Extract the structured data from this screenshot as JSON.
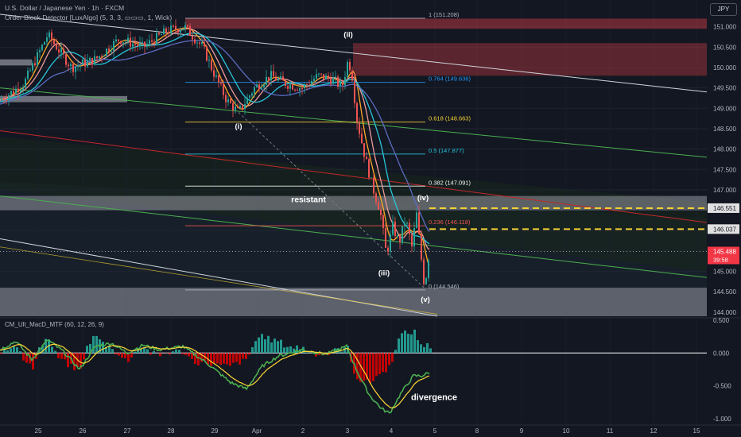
{
  "header": {
    "symbol_line": "U.S. Dollar / Japanese Yen · 1h · FXCM",
    "indicator_line": "Order Block Detector [LuxAlgo] (5, 3, 3, ▭▭▭, 1, Wick)",
    "currency_badge": "JPY"
  },
  "colors": {
    "background": "#131722",
    "bull": "#26a69a",
    "bear": "#ef5350",
    "resistance_level": "#f5d033",
    "last_price": "#f23645",
    "order_block_bear": "#b2373f",
    "macd_up": "#26a69a",
    "macd_down": "#d50000",
    "macd_line": "#4caf50",
    "signal_line": "#fdd835"
  },
  "chart_data": [
    {
      "type": "candlestick",
      "title": "U.S. Dollar / Japanese Yen · 1h · FXCM",
      "ylim": [
        143.9,
        151.5
      ],
      "y_ticks": [
        144.0,
        144.5,
        145.0,
        145.5,
        146.0,
        146.5,
        147.0,
        147.5,
        148.0,
        148.5,
        149.0,
        149.5,
        150.0,
        150.5,
        151.0
      ],
      "y_tick_labels": [
        "144.000",
        "144.500",
        "145.000",
        "145.500",
        "146.000",
        "146.500",
        "147.000",
        "147.500",
        "148.000",
        "148.500",
        "149.000",
        "149.500",
        "150.000",
        "150.500",
        "151.000"
      ],
      "x_tick_labels": [
        "25",
        "26",
        "27",
        "28",
        "29",
        "Apr",
        "2",
        "3",
        "4",
        "5",
        "8",
        "9",
        "10",
        "11",
        "12",
        "15"
      ],
      "price_anchors": [
        {
          "x": 0,
          "y": 149.2
        },
        {
          "x": 30,
          "y": 149.6
        },
        {
          "x": 60,
          "y": 150.8
        },
        {
          "x": 90,
          "y": 150.0
        },
        {
          "x": 120,
          "y": 150.2
        },
        {
          "x": 150,
          "y": 150.7
        },
        {
          "x": 180,
          "y": 150.5
        },
        {
          "x": 210,
          "y": 150.9
        },
        {
          "x": 232,
          "y": 151.0
        },
        {
          "x": 255,
          "y": 150.5
        },
        {
          "x": 268,
          "y": 149.9
        },
        {
          "x": 285,
          "y": 149.2
        },
        {
          "x": 300,
          "y": 148.9
        },
        {
          "x": 320,
          "y": 149.5
        },
        {
          "x": 340,
          "y": 149.8
        },
        {
          "x": 360,
          "y": 149.6
        },
        {
          "x": 380,
          "y": 149.5
        },
        {
          "x": 400,
          "y": 149.8
        },
        {
          "x": 420,
          "y": 149.7
        },
        {
          "x": 430,
          "y": 149.5
        },
        {
          "x": 438,
          "y": 150.2
        },
        {
          "x": 444,
          "y": 149.7
        },
        {
          "x": 448,
          "y": 148.8
        },
        {
          "x": 458,
          "y": 147.9
        },
        {
          "x": 468,
          "y": 147.1
        },
        {
          "x": 478,
          "y": 146.5
        },
        {
          "x": 486,
          "y": 145.4
        },
        {
          "x": 494,
          "y": 146.1
        },
        {
          "x": 502,
          "y": 145.7
        },
        {
          "x": 510,
          "y": 146.3
        },
        {
          "x": 518,
          "y": 145.6
        },
        {
          "x": 524,
          "y": 146.4
        },
        {
          "x": 530,
          "y": 145.3
        },
        {
          "x": 534,
          "y": 144.6
        },
        {
          "x": 540,
          "y": 145.5
        }
      ],
      "fib_levels": [
        {
          "ratio": 1,
          "price": 151.208,
          "label": "1 (151.208)",
          "color": "#b2b5be"
        },
        {
          "ratio": 0.764,
          "price": 149.636,
          "label": "0.764 (149.636)",
          "color": "#2196f3"
        },
        {
          "ratio": 0.618,
          "price": 148.663,
          "label": "0.618 (148.663)",
          "color": "#f5d033"
        },
        {
          "ratio": 0.5,
          "price": 147.877,
          "label": "0.5 (147.877)",
          "color": "#26c6da"
        },
        {
          "ratio": 0.382,
          "price": 147.091,
          "label": "0.382 (147.091)",
          "color": "#f5f5f5"
        },
        {
          "ratio": 0.236,
          "price": 146.118,
          "label": "0.236 (146.118)",
          "color": "#ef5350"
        },
        {
          "ratio": 0,
          "price": 144.546,
          "label": "0 (144.546)",
          "color": "#b2b5be"
        }
      ],
      "dashed_levels": [
        {
          "price": 146.551,
          "label": "146.551"
        },
        {
          "price": 146.037,
          "label": "146.037"
        }
      ],
      "last_price": {
        "price": 145.488,
        "label": "145.488",
        "countdown": "39:58"
      },
      "wave_labels": [
        {
          "label": "(i)",
          "x": 300,
          "y": 148.5
        },
        {
          "label": "(ii)",
          "x": 438,
          "y": 150.75
        },
        {
          "label": "(iii)",
          "x": 483,
          "y": 144.9
        },
        {
          "label": "(iv)",
          "x": 532,
          "y": 146.75
        },
        {
          "label": "(v)",
          "x": 535,
          "y": 144.25
        }
      ],
      "annotations": [
        {
          "label": "resistant",
          "x": 388,
          "y": 146.7
        }
      ]
    },
    {
      "type": "histogram+line",
      "title": "CM_Ult_MacD_MTF (60, 12, 26, 9)",
      "ylim": [
        -1.1,
        0.5
      ],
      "y_ticks": [
        0.5,
        0.0,
        -0.5,
        -1.0
      ],
      "y_tick_labels": [
        "0.500",
        "0.000",
        "-0.500",
        "-1.000"
      ],
      "macd_anchors": [
        {
          "x": 0,
          "y": 0.05
        },
        {
          "x": 20,
          "y": 0.18
        },
        {
          "x": 40,
          "y": -0.1
        },
        {
          "x": 60,
          "y": 0.2
        },
        {
          "x": 80,
          "y": 0.02
        },
        {
          "x": 100,
          "y": -0.25
        },
        {
          "x": 120,
          "y": 0.1
        },
        {
          "x": 140,
          "y": 0.15
        },
        {
          "x": 160,
          "y": 0.0
        },
        {
          "x": 180,
          "y": 0.12
        },
        {
          "x": 200,
          "y": 0.05
        },
        {
          "x": 230,
          "y": 0.1
        },
        {
          "x": 260,
          "y": -0.15
        },
        {
          "x": 290,
          "y": -0.45
        },
        {
          "x": 310,
          "y": -0.55
        },
        {
          "x": 330,
          "y": -0.2
        },
        {
          "x": 350,
          "y": -0.05
        },
        {
          "x": 380,
          "y": 0.05
        },
        {
          "x": 410,
          "y": -0.02
        },
        {
          "x": 436,
          "y": 0.1
        },
        {
          "x": 450,
          "y": -0.3
        },
        {
          "x": 465,
          "y": -0.65
        },
        {
          "x": 480,
          "y": -0.85
        },
        {
          "x": 490,
          "y": -0.92
        },
        {
          "x": 505,
          "y": -0.6
        },
        {
          "x": 520,
          "y": -0.35
        },
        {
          "x": 530,
          "y": -0.35
        },
        {
          "x": 540,
          "y": -0.3
        }
      ],
      "annotations": [
        {
          "label": "divergence",
          "x": 546,
          "y": -0.72
        }
      ]
    }
  ]
}
